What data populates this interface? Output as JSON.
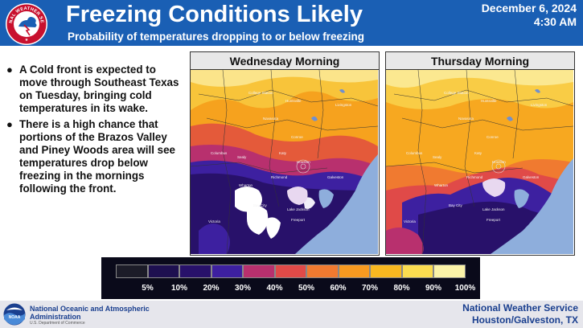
{
  "header": {
    "title": "Freezing Conditions Likely",
    "subtitle": "Probability of temperatures dropping to or below freezing",
    "date": "December 6, 2024",
    "time": "4:30 AM",
    "logo_text": "NATIONAL WEATHER SERVICE",
    "background_color": "#1a5fb4"
  },
  "bullets": [
    "A Cold front is expected to move through Southeast Texas on Tuesday, bringing cold temperatures in its wake.",
    "There is a high chance that portions of the Brazos Valley and Piney Woods area will see temperatures drop below freezing in the mornings following the front."
  ],
  "panels": [
    {
      "title": "Wednesday Morning",
      "places": [
        "Huntsville",
        "Conroe",
        "Livingston",
        "College Station",
        "Navasota",
        "Houston",
        "Sealy",
        "Columbus",
        "Richmond",
        "Wharton",
        "Bay City",
        "Victoria",
        "Lake Jackson",
        "Galveston",
        "Freeport",
        "Katy"
      ]
    },
    {
      "title": "Thursday Morning",
      "places": [
        "Huntsville",
        "Conroe",
        "Livingston",
        "College Station",
        "Navasota",
        "Houston",
        "Sealy",
        "Columbus",
        "Richmond",
        "Wharton",
        "Bay City",
        "Victoria",
        "Lake Jackson",
        "Galveston",
        "Freeport",
        "Katy"
      ]
    }
  ],
  "legend": {
    "labels": [
      "5%",
      "10%",
      "20%",
      "30%",
      "40%",
      "50%",
      "60%",
      "70%",
      "80%",
      "90%",
      "100%"
    ],
    "colors": [
      "#1c1c28",
      "#1e1050",
      "#28116a",
      "#3d20a0",
      "#b8306e",
      "#e04a48",
      "#f07a30",
      "#f89a20",
      "#f9b820",
      "#fbdc50",
      "#fbf3a8"
    ]
  },
  "footer": {
    "noaa_name": "National Oceanic and Atmospheric Administration",
    "noaa_dept": "U.S. Department of Commerce",
    "nws_name": "National Weather Service",
    "office": "Houston/Galveston, TX",
    "noaa_logo_text": "NOAA"
  }
}
